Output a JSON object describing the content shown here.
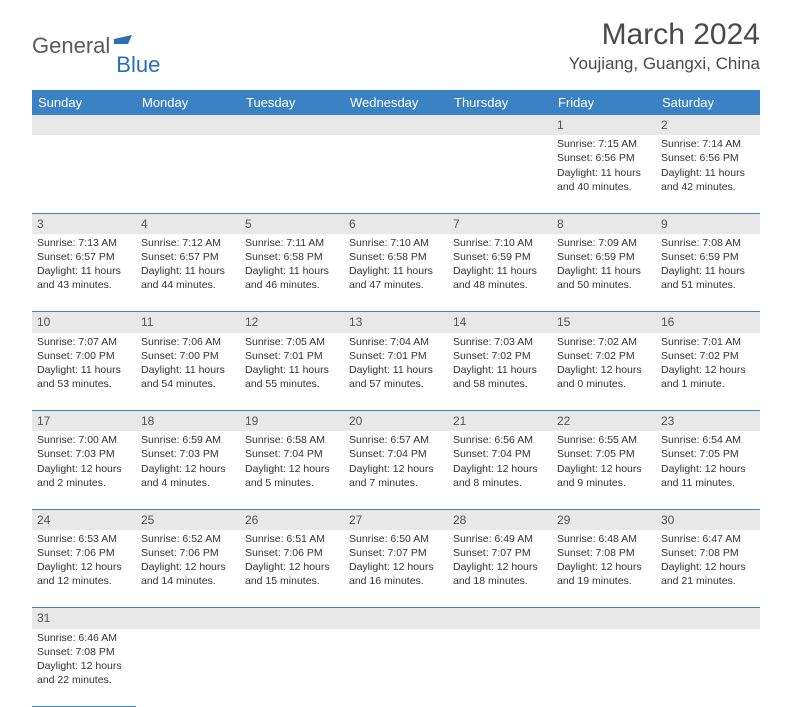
{
  "logo": {
    "part1": "General",
    "part2": "Blue"
  },
  "title": "March 2024",
  "location": "Youjiang, Guangxi, China",
  "colors": {
    "header_bg": "#3b82c4",
    "header_text": "#ffffff",
    "daynum_bg": "#e8e8e8",
    "border": "#3b82c4",
    "logo_gray": "#5a5a5a",
    "logo_blue": "#2a6fb5"
  },
  "weekdays": [
    "Sunday",
    "Monday",
    "Tuesday",
    "Wednesday",
    "Thursday",
    "Friday",
    "Saturday"
  ],
  "weeks": [
    {
      "nums": [
        "",
        "",
        "",
        "",
        "",
        "1",
        "2"
      ],
      "cells": [
        null,
        null,
        null,
        null,
        null,
        {
          "sunrise": "Sunrise: 7:15 AM",
          "sunset": "Sunset: 6:56 PM",
          "day1": "Daylight: 11 hours",
          "day2": "and 40 minutes."
        },
        {
          "sunrise": "Sunrise: 7:14 AM",
          "sunset": "Sunset: 6:56 PM",
          "day1": "Daylight: 11 hours",
          "day2": "and 42 minutes."
        }
      ]
    },
    {
      "nums": [
        "3",
        "4",
        "5",
        "6",
        "7",
        "8",
        "9"
      ],
      "cells": [
        {
          "sunrise": "Sunrise: 7:13 AM",
          "sunset": "Sunset: 6:57 PM",
          "day1": "Daylight: 11 hours",
          "day2": "and 43 minutes."
        },
        {
          "sunrise": "Sunrise: 7:12 AM",
          "sunset": "Sunset: 6:57 PM",
          "day1": "Daylight: 11 hours",
          "day2": "and 44 minutes."
        },
        {
          "sunrise": "Sunrise: 7:11 AM",
          "sunset": "Sunset: 6:58 PM",
          "day1": "Daylight: 11 hours",
          "day2": "and 46 minutes."
        },
        {
          "sunrise": "Sunrise: 7:10 AM",
          "sunset": "Sunset: 6:58 PM",
          "day1": "Daylight: 11 hours",
          "day2": "and 47 minutes."
        },
        {
          "sunrise": "Sunrise: 7:10 AM",
          "sunset": "Sunset: 6:59 PM",
          "day1": "Daylight: 11 hours",
          "day2": "and 48 minutes."
        },
        {
          "sunrise": "Sunrise: 7:09 AM",
          "sunset": "Sunset: 6:59 PM",
          "day1": "Daylight: 11 hours",
          "day2": "and 50 minutes."
        },
        {
          "sunrise": "Sunrise: 7:08 AM",
          "sunset": "Sunset: 6:59 PM",
          "day1": "Daylight: 11 hours",
          "day2": "and 51 minutes."
        }
      ]
    },
    {
      "nums": [
        "10",
        "11",
        "12",
        "13",
        "14",
        "15",
        "16"
      ],
      "cells": [
        {
          "sunrise": "Sunrise: 7:07 AM",
          "sunset": "Sunset: 7:00 PM",
          "day1": "Daylight: 11 hours",
          "day2": "and 53 minutes."
        },
        {
          "sunrise": "Sunrise: 7:06 AM",
          "sunset": "Sunset: 7:00 PM",
          "day1": "Daylight: 11 hours",
          "day2": "and 54 minutes."
        },
        {
          "sunrise": "Sunrise: 7:05 AM",
          "sunset": "Sunset: 7:01 PM",
          "day1": "Daylight: 11 hours",
          "day2": "and 55 minutes."
        },
        {
          "sunrise": "Sunrise: 7:04 AM",
          "sunset": "Sunset: 7:01 PM",
          "day1": "Daylight: 11 hours",
          "day2": "and 57 minutes."
        },
        {
          "sunrise": "Sunrise: 7:03 AM",
          "sunset": "Sunset: 7:02 PM",
          "day1": "Daylight: 11 hours",
          "day2": "and 58 minutes."
        },
        {
          "sunrise": "Sunrise: 7:02 AM",
          "sunset": "Sunset: 7:02 PM",
          "day1": "Daylight: 12 hours",
          "day2": "and 0 minutes."
        },
        {
          "sunrise": "Sunrise: 7:01 AM",
          "sunset": "Sunset: 7:02 PM",
          "day1": "Daylight: 12 hours",
          "day2": "and 1 minute."
        }
      ]
    },
    {
      "nums": [
        "17",
        "18",
        "19",
        "20",
        "21",
        "22",
        "23"
      ],
      "cells": [
        {
          "sunrise": "Sunrise: 7:00 AM",
          "sunset": "Sunset: 7:03 PM",
          "day1": "Daylight: 12 hours",
          "day2": "and 2 minutes."
        },
        {
          "sunrise": "Sunrise: 6:59 AM",
          "sunset": "Sunset: 7:03 PM",
          "day1": "Daylight: 12 hours",
          "day2": "and 4 minutes."
        },
        {
          "sunrise": "Sunrise: 6:58 AM",
          "sunset": "Sunset: 7:04 PM",
          "day1": "Daylight: 12 hours",
          "day2": "and 5 minutes."
        },
        {
          "sunrise": "Sunrise: 6:57 AM",
          "sunset": "Sunset: 7:04 PM",
          "day1": "Daylight: 12 hours",
          "day2": "and 7 minutes."
        },
        {
          "sunrise": "Sunrise: 6:56 AM",
          "sunset": "Sunset: 7:04 PM",
          "day1": "Daylight: 12 hours",
          "day2": "and 8 minutes."
        },
        {
          "sunrise": "Sunrise: 6:55 AM",
          "sunset": "Sunset: 7:05 PM",
          "day1": "Daylight: 12 hours",
          "day2": "and 9 minutes."
        },
        {
          "sunrise": "Sunrise: 6:54 AM",
          "sunset": "Sunset: 7:05 PM",
          "day1": "Daylight: 12 hours",
          "day2": "and 11 minutes."
        }
      ]
    },
    {
      "nums": [
        "24",
        "25",
        "26",
        "27",
        "28",
        "29",
        "30"
      ],
      "cells": [
        {
          "sunrise": "Sunrise: 6:53 AM",
          "sunset": "Sunset: 7:06 PM",
          "day1": "Daylight: 12 hours",
          "day2": "and 12 minutes."
        },
        {
          "sunrise": "Sunrise: 6:52 AM",
          "sunset": "Sunset: 7:06 PM",
          "day1": "Daylight: 12 hours",
          "day2": "and 14 minutes."
        },
        {
          "sunrise": "Sunrise: 6:51 AM",
          "sunset": "Sunset: 7:06 PM",
          "day1": "Daylight: 12 hours",
          "day2": "and 15 minutes."
        },
        {
          "sunrise": "Sunrise: 6:50 AM",
          "sunset": "Sunset: 7:07 PM",
          "day1": "Daylight: 12 hours",
          "day2": "and 16 minutes."
        },
        {
          "sunrise": "Sunrise: 6:49 AM",
          "sunset": "Sunset: 7:07 PM",
          "day1": "Daylight: 12 hours",
          "day2": "and 18 minutes."
        },
        {
          "sunrise": "Sunrise: 6:48 AM",
          "sunset": "Sunset: 7:08 PM",
          "day1": "Daylight: 12 hours",
          "day2": "and 19 minutes."
        },
        {
          "sunrise": "Sunrise: 6:47 AM",
          "sunset": "Sunset: 7:08 PM",
          "day1": "Daylight: 12 hours",
          "day2": "and 21 minutes."
        }
      ]
    },
    {
      "nums": [
        "31",
        "",
        "",
        "",
        "",
        "",
        ""
      ],
      "cells": [
        {
          "sunrise": "Sunrise: 6:46 AM",
          "sunset": "Sunset: 7:08 PM",
          "day1": "Daylight: 12 hours",
          "day2": "and 22 minutes."
        },
        null,
        null,
        null,
        null,
        null,
        null
      ]
    }
  ]
}
